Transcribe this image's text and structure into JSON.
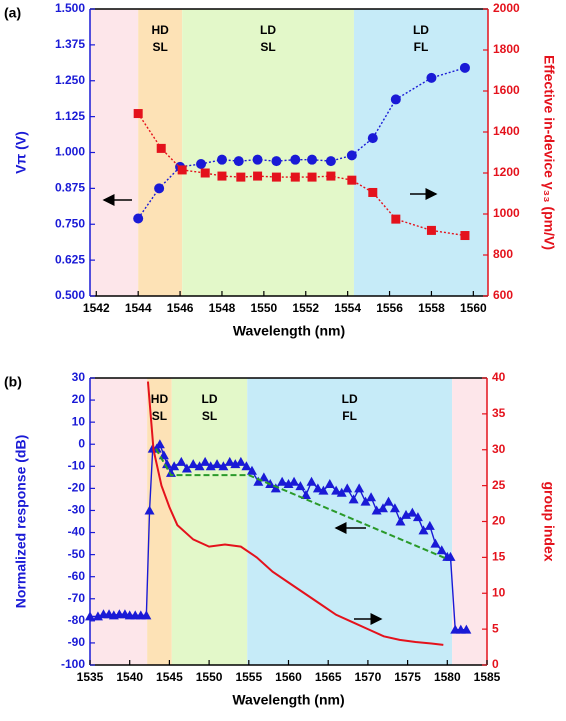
{
  "chart_data": [
    {
      "type": "scatter",
      "panel": "(a)",
      "xlabel": "Wavelength (nm)",
      "ylabel": "Vπ (V)",
      "y2label": "Effective in-device γ₃₃ (pm/V)",
      "xlim": [
        1541.7,
        1560.7
      ],
      "xticks": [
        1542,
        1544,
        1546,
        1548,
        1550,
        1552,
        1554,
        1556,
        1558,
        1560
      ],
      "ylim": [
        0.5,
        1.5
      ],
      "yticks": [
        {
          "value": 0.5,
          "label": "0.500"
        },
        {
          "value": 0.625,
          "label": "0.625"
        },
        {
          "value": 0.75,
          "label": "0.750"
        },
        {
          "value": 0.875,
          "label": "0.875"
        },
        {
          "value": 1.0,
          "label": "1.000"
        },
        {
          "value": 1.125,
          "label": "1.125"
        },
        {
          "value": 1.25,
          "label": "1.250"
        },
        {
          "value": 1.375,
          "label": "1.375"
        },
        {
          "value": 1.5,
          "label": "1.500"
        }
      ],
      "y2lim": [
        600,
        2000
      ],
      "y2ticks": [
        600,
        800,
        1000,
        1200,
        1400,
        1600,
        1800,
        2000
      ],
      "ycolor": "#1a1ad6",
      "y2color": "#e4121c",
      "regions": [
        {
          "xlim": [
            1541.7,
            1544
          ],
          "color": "#fde6ea",
          "label": []
        },
        {
          "xlim": [
            1544,
            1546.1
          ],
          "color": "#fde2b6",
          "label": [
            "HD",
            "SL"
          ]
        },
        {
          "xlim": [
            1546.1,
            1554.3
          ],
          "color": "#e3f8c9",
          "label": [
            "LD",
            "SL"
          ]
        },
        {
          "xlim": [
            1554.3,
            1560.7
          ],
          "color": "#c6ebf8",
          "label": [
            "LD",
            "FL"
          ]
        }
      ],
      "series": [
        {
          "color": "#1a1ad6",
          "marker": "circle",
          "line": "dotted",
          "x": [
            1544,
            1545,
            1546,
            1547,
            1548,
            1548.8,
            1549.7,
            1550.6,
            1551.5,
            1552.3,
            1553.2,
            1554.2,
            1555.2,
            1556.3,
            1558,
            1559.6
          ],
          "values": [
            0.77,
            0.875,
            0.95,
            0.96,
            0.975,
            0.97,
            0.975,
            0.97,
            0.975,
            0.975,
            0.97,
            0.99,
            1.05,
            1.185,
            1.26,
            1.295
          ]
        },
        {
          "color": "#e4121c",
          "marker": "square",
          "line": "dotted",
          "axis": "y2",
          "x": [
            1544,
            1545.1,
            1546.1,
            1547.2,
            1548,
            1548.9,
            1549.7,
            1550.6,
            1551.5,
            1552.3,
            1553.2,
            1554.2,
            1555.2,
            1556.3,
            1558,
            1559.6
          ],
          "values": [
            1490,
            1320,
            1215,
            1200,
            1185,
            1180,
            1185,
            1180,
            1180,
            1180,
            1185,
            1165,
            1105,
            975,
            920,
            895
          ]
        }
      ]
    },
    {
      "type": "scatter",
      "panel": "(b)",
      "xlabel": "Wavelength (nm)",
      "ylabel": "Normalized response (dB)",
      "y2label": "group index",
      "xlim": [
        1535,
        1585
      ],
      "xticks": [
        1535,
        1540,
        1545,
        1550,
        1555,
        1560,
        1565,
        1570,
        1575,
        1580,
        1585
      ],
      "ylim": [
        -100,
        30
      ],
      "yticks": [
        -100,
        -90,
        -80,
        -70,
        -60,
        -50,
        -40,
        -30,
        -20,
        -10,
        0,
        10,
        20,
        30
      ],
      "y2lim": [
        0,
        40
      ],
      "y2ticks": [
        0,
        5,
        10,
        15,
        20,
        25,
        30,
        35,
        40
      ],
      "ycolor": "#1a1ad6",
      "y2color": "#e4121c",
      "regions": [
        {
          "xlim": [
            1535,
            1542.2
          ],
          "color": "#fde6ea",
          "label": []
        },
        {
          "xlim": [
            1542.2,
            1545.3
          ],
          "color": "#fde2b6",
          "label": [
            "HD",
            "SL"
          ]
        },
        {
          "xlim": [
            1545.3,
            1554.8
          ],
          "color": "#e3f8c9",
          "label": [
            "LD",
            "SL"
          ]
        },
        {
          "xlim": [
            1554.8,
            1580.6
          ],
          "color": "#c6ebf8",
          "label": [
            "LD",
            "FL"
          ]
        },
        {
          "xlim": [
            1580.6,
            1585
          ],
          "color": "#fde6ea",
          "label": []
        }
      ],
      "series": [
        {
          "color": "#1a1ad6",
          "marker": "triangle",
          "line": "solid",
          "x": [
            1535,
            1536,
            1536.7,
            1537.4,
            1538,
            1538.7,
            1539.4,
            1540,
            1540.7,
            1541.4,
            1542.1,
            1542.5,
            1542.9,
            1543.4,
            1543.8,
            1544.3,
            1544.7,
            1545.2,
            1545.6,
            1546.5,
            1547.2,
            1548,
            1548.8,
            1549.5,
            1550.2,
            1551,
            1551.8,
            1552.6,
            1553.3,
            1554,
            1554.7,
            1555.4,
            1556.2,
            1556.9,
            1557.7,
            1558.4,
            1559.2,
            1560,
            1560.7,
            1561.5,
            1562.2,
            1562.9,
            1563.7,
            1564.4,
            1565.2,
            1566,
            1566.7,
            1567.4,
            1568.2,
            1568.9,
            1569.7,
            1570.4,
            1571.1,
            1571.9,
            1572.6,
            1573.4,
            1574.1,
            1574.8,
            1575.6,
            1576.3,
            1577,
            1577.8,
            1578.5,
            1579.3,
            1580,
            1580.4,
            1581,
            1581.7,
            1582.4
          ],
          "values": [
            -78,
            -78,
            -77,
            -77,
            -77.5,
            -77,
            -77,
            -77.5,
            -77.5,
            -77.5,
            -77.5,
            -30,
            -2,
            -2,
            0,
            -5,
            -9,
            -13,
            -10,
            -8,
            -11,
            -9,
            -10,
            -8,
            -10,
            -9,
            -10,
            -8,
            -9,
            -8,
            -10,
            -12,
            -17,
            -15,
            -18,
            -20,
            -17,
            -18,
            -17,
            -19,
            -23,
            -17,
            -20,
            -21,
            -18,
            -21,
            -22,
            -20,
            -25,
            -20,
            -26,
            -24,
            -30,
            -29,
            -26,
            -29,
            -35,
            -32,
            -31,
            -33,
            -39,
            -37,
            -45,
            -48,
            -51,
            -51,
            -84,
            -84,
            -84
          ]
        },
        {
          "color": "#2a9a2a",
          "marker": "none",
          "line": "dashed",
          "x": [
            1543.3,
            1545.2,
            1555,
            1580
          ],
          "values": [
            -2,
            -14,
            -14,
            -52
          ]
        },
        {
          "color": "#e4121c",
          "marker": "none",
          "line": "solid",
          "axis": "y2",
          "x": [
            1542.3,
            1543,
            1544,
            1545,
            1546,
            1548,
            1550,
            1552,
            1554,
            1556,
            1558,
            1560,
            1562,
            1564,
            1566,
            1568,
            1570,
            1572,
            1574,
            1576,
            1578,
            1579.5
          ],
          "values": [
            39.5,
            30,
            25,
            22,
            19.5,
            17.5,
            16.5,
            16.8,
            16.5,
            15,
            13,
            11.5,
            10,
            8.5,
            7,
            6,
            5,
            4,
            3.5,
            3.2,
            3,
            2.8
          ]
        }
      ]
    }
  ]
}
